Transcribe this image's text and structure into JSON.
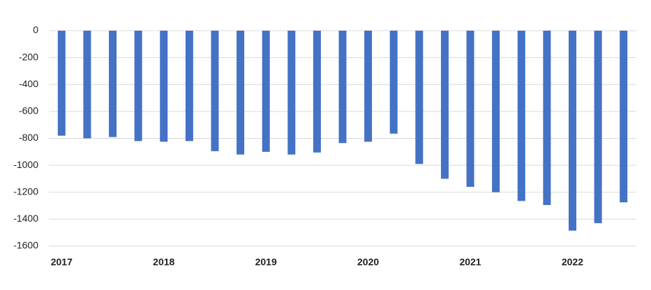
{
  "chart_data": {
    "type": "bar",
    "categories": [
      "2017",
      null,
      null,
      null,
      "2018",
      null,
      null,
      null,
      "2019",
      null,
      null,
      null,
      "2020",
      null,
      null,
      null,
      "2021",
      null,
      null,
      null,
      "2022",
      null,
      null
    ],
    "values": [
      -780,
      -800,
      -790,
      -820,
      -825,
      -820,
      -895,
      -920,
      -900,
      -920,
      -905,
      -835,
      -825,
      -765,
      -990,
      -1100,
      -1160,
      -1200,
      -1265,
      -1295,
      -1485,
      -1430,
      -1275
    ],
    "color": "#4472c4",
    "ylim": [
      -1600,
      0
    ],
    "yticks": [
      0,
      -200,
      -400,
      -600,
      -800,
      -1000,
      -1200,
      -1400,
      -1600
    ],
    "grid": true
  }
}
